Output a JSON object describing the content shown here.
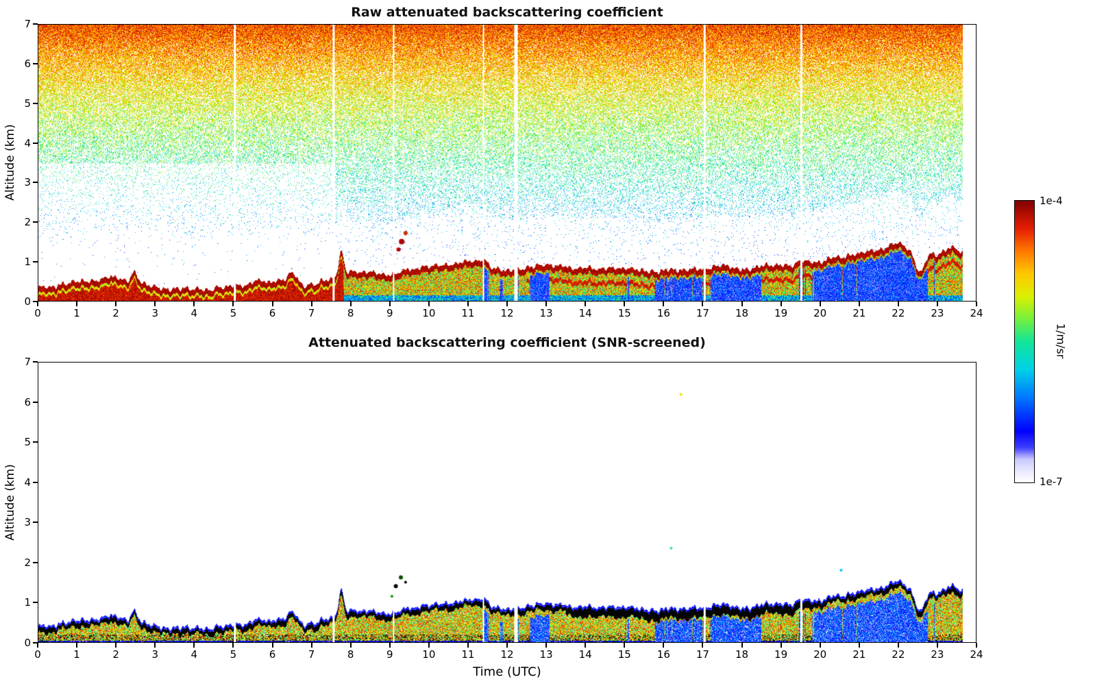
{
  "figure": {
    "background": "#ffffff"
  },
  "panel1": {
    "title": "Raw attenuated backscattering coefficient"
  },
  "panel2": {
    "title": "Attenuated backscattering coefficient (SNR-screened)"
  },
  "axes": {
    "xlabel": "Time (UTC)",
    "ylabel": "Altitude (km)"
  },
  "colorbar": {
    "top_label": "1e-4",
    "bottom_label": "1e-7",
    "unit_label": "1/m/sr"
  },
  "chart_data": [
    {
      "type": "heatmap",
      "title": "Raw attenuated backscattering coefficient",
      "xlabel": "Time (UTC)",
      "ylabel": "Altitude (km)",
      "xlim": [
        0,
        24
      ],
      "ylim": [
        0,
        7
      ],
      "x_ticks": [
        0,
        1,
        2,
        3,
        4,
        5,
        6,
        7,
        8,
        9,
        10,
        11,
        12,
        13,
        14,
        15,
        16,
        17,
        18,
        19,
        20,
        21,
        22,
        23,
        24
      ],
      "y_ticks": [
        0,
        1,
        2,
        3,
        4,
        5,
        6,
        7
      ],
      "grid": false,
      "colorscale": {
        "min": 1e-07,
        "max": 0.0001,
        "scale": "log",
        "unit": "1/m/sr",
        "colormap_stops": [
          [
            0.0,
            "#ffffff"
          ],
          [
            0.04,
            "#e8e8ff"
          ],
          [
            0.08,
            "#c8c8ff"
          ],
          [
            0.12,
            "#4040ff"
          ],
          [
            0.18,
            "#0000ff"
          ],
          [
            0.3,
            "#0078ff"
          ],
          [
            0.4,
            "#00d2e6"
          ],
          [
            0.5,
            "#14e696"
          ],
          [
            0.58,
            "#78f03c"
          ],
          [
            0.66,
            "#dcf000"
          ],
          [
            0.74,
            "#ffc800"
          ],
          [
            0.82,
            "#ff7800"
          ],
          [
            0.9,
            "#e61e00"
          ],
          [
            1.0,
            "#800000"
          ]
        ]
      },
      "data_end_time_utc": 23.65,
      "gaps_utc": [
        {
          "time": 5.02,
          "width": 0.04
        },
        {
          "time": 7.55,
          "width": 0.06
        },
        {
          "time": 9.08,
          "width": 0.03
        },
        {
          "time": 11.38,
          "width": 0.04
        },
        {
          "time": 12.22,
          "width": 0.09
        },
        {
          "time": 17.05,
          "width": 0.05
        },
        {
          "time": 19.52,
          "width": 0.05
        }
      ],
      "series": [
        {
          "name": "aerosol_layer_top_km",
          "x": [
            0,
            1,
            2,
            3,
            4,
            5,
            6,
            7,
            8,
            9,
            10,
            11,
            12,
            13,
            14,
            15,
            16,
            17,
            18,
            19,
            20,
            21,
            22,
            23
          ],
          "values": [
            0.35,
            0.5,
            0.6,
            0.35,
            0.3,
            0.35,
            0.5,
            0.45,
            0.75,
            0.65,
            0.9,
            1.0,
            0.75,
            0.95,
            0.85,
            0.8,
            0.8,
            0.85,
            0.85,
            0.9,
            1.05,
            1.25,
            1.3,
            1.2
          ]
        },
        {
          "name": "sub_layer_blue_fraction",
          "x": [
            0,
            1,
            2,
            3,
            4,
            5,
            6,
            7,
            8,
            9,
            10,
            11,
            12,
            13,
            14,
            15,
            16,
            17,
            18,
            19,
            20,
            21,
            22,
            23
          ],
          "values": [
            0.05,
            0.05,
            0.05,
            0.05,
            0.05,
            0.05,
            0.08,
            0.1,
            0.35,
            0.3,
            0.3,
            0.35,
            0.3,
            0.35,
            0.3,
            0.3,
            0.45,
            0.55,
            0.5,
            0.45,
            0.65,
            0.75,
            0.6,
            0.35
          ]
        }
      ],
      "layer_top_bumps": [
        {
          "time": 2.45,
          "height": 0.3,
          "width": 0.12
        },
        {
          "time": 6.5,
          "height": 0.28,
          "width": 0.15
        },
        {
          "time": 7.75,
          "height": 0.6,
          "width": 0.09
        },
        {
          "time": 11.4,
          "height": 0.2,
          "width": 0.18
        },
        {
          "time": 21.97,
          "height": 0.2,
          "width": 0.25
        },
        {
          "time": 22.55,
          "height": -0.5,
          "width": 0.15
        },
        {
          "time": 23.4,
          "height": 0.15,
          "width": 0.2
        }
      ],
      "point_features": [
        {
          "t": 9.3,
          "z": 1.5,
          "color": "#b00000",
          "size": 4
        },
        {
          "t": 9.4,
          "z": 1.72,
          "color": "#d03000",
          "size": 3
        },
        {
          "t": 9.22,
          "z": 1.3,
          "color": "#c00000",
          "size": 3
        }
      ],
      "description": "Ceilometer quicklook: noise speckle density and value increase with altitude (blue 1-3 km, cyan/green 3-5 km, yellow/orange/red 5-7 km). Dark-red aerosol/cloud layer below ~0.3-1.4 km rising through the day; blue attenuated columns below opaque layer after 08 UTC; white vertical stripes are data gaps; data ends ~23.65 UTC."
    },
    {
      "type": "heatmap",
      "title": "Attenuated backscattering coefficient (SNR-screened)",
      "xlabel": "Time (UTC)",
      "ylabel": "Altitude (km)",
      "xlim": [
        0,
        24
      ],
      "ylim": [
        0,
        7
      ],
      "x_ticks": [
        0,
        1,
        2,
        3,
        4,
        5,
        6,
        7,
        8,
        9,
        10,
        11,
        12,
        13,
        14,
        15,
        16,
        17,
        18,
        19,
        20,
        21,
        22,
        23,
        24
      ],
      "y_ticks": [
        0,
        1,
        2,
        3,
        4,
        5,
        6,
        7
      ],
      "grid": false,
      "colorscale_ref": "same as raw panel (log 1e-7 to 1e-4, 1/m/sr)",
      "series_ref": "same aerosol_layer_top_km and sub_layer_blue_fraction as raw panel",
      "point_features": [
        {
          "t": 16.45,
          "z": 6.2,
          "color": "#e8e800",
          "size": 2
        },
        {
          "t": 9.15,
          "z": 1.4,
          "color": "#000000",
          "size": 3
        },
        {
          "t": 9.28,
          "z": 1.62,
          "color": "#005000",
          "size": 3
        },
        {
          "t": 9.05,
          "z": 1.15,
          "color": "#00a000",
          "size": 2
        },
        {
          "t": 9.4,
          "z": 1.5,
          "color": "#000000",
          "size": 2
        },
        {
          "t": 16.2,
          "z": 2.35,
          "color": "#40e0a0",
          "size": 2
        },
        {
          "t": 20.55,
          "z": 1.8,
          "color": "#00c8ff",
          "size": 2
        }
      ],
      "description": "Same scene after SNR screening: only boundary-layer signal below ~1.6 km remains; saturated values render nearly black along layer top with thin blue fringe; interior mixed red/orange/yellow/green with blue attenuated columns; everything else white."
    }
  ]
}
